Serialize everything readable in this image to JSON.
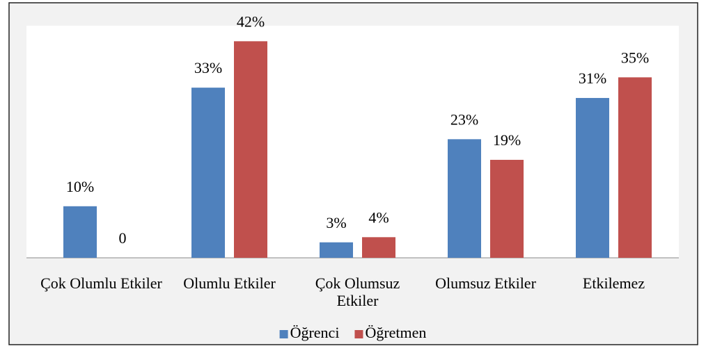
{
  "chart_data": {
    "type": "bar",
    "categories": [
      "Çok Olumlu Etkiler",
      "Olumlu Etkiler",
      "Çok Olumsuz Etkiler",
      "Olumsuz Etkiler",
      "Etkilemez"
    ],
    "series": [
      {
        "name": "Öğrenci",
        "color": "#4f81bd",
        "values": [
          10,
          33,
          3,
          23,
          31
        ],
        "value_labels": [
          "10%",
          "33%",
          "3%",
          "23%",
          "31%"
        ]
      },
      {
        "name": "Öğretmen",
        "color": "#c0504d",
        "values": [
          0,
          42,
          4,
          19,
          35
        ],
        "value_labels": [
          "0",
          "42%",
          "4%",
          "19%",
          "35%"
        ]
      }
    ],
    "legend": "bottom"
  }
}
